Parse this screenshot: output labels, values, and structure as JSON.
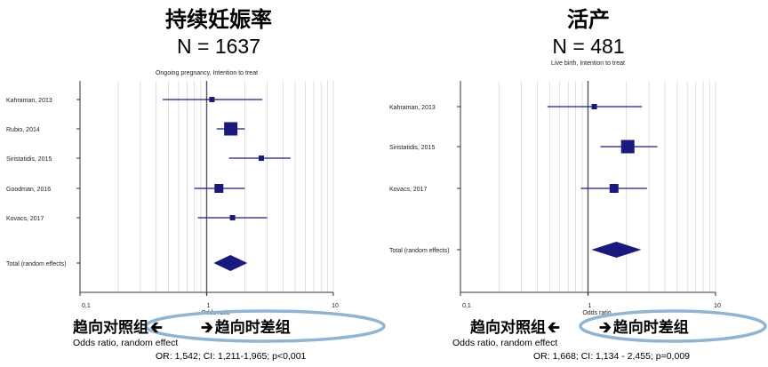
{
  "panels": [
    {
      "title": "持续妊娠率",
      "n_label": "N = 1637",
      "plot_title": "Ongoing pregnancy, Intention to treat",
      "xlabel": "Odds ratio",
      "direction_left": "趋向对照组",
      "direction_right": "趋向时差组",
      "footer_line1": "Odds ratio, random effect",
      "footer_line2": "OR: 1,542; CI: 1,211-1,965; p<0,001"
    },
    {
      "title": "活产",
      "n_label": "N = 481",
      "plot_title": "Live birth, Intention to treat",
      "xlabel": "Odds ratio",
      "direction_left": "趋向对照组",
      "direction_right": "趋向时差组",
      "footer_line1": "Odds ratio, random effect",
      "footer_line2": "OR: 1,668; CI: 1,134 - 2,455; p=0,009"
    }
  ],
  "colors": {
    "marker": "#1a1a7e",
    "highlight_ellipse": "#8fb4d4",
    "grid": "#d8d8d8",
    "reference_line": "#555555"
  },
  "chart_data": [
    {
      "type": "forest",
      "title": "Ongoing pregnancy, Intention to treat",
      "xlabel": "Odds ratio",
      "xscale": "log",
      "xlim": [
        0.1,
        10
      ],
      "xticks": [
        "0,1",
        "1",
        "10"
      ],
      "reference": 1,
      "grid": true,
      "studies": [
        {
          "label": "Kahraman, 2013",
          "or": 1.1,
          "lo": 0.45,
          "hi": 2.75,
          "weight": "small"
        },
        {
          "label": "Rubio, 2014",
          "or": 1.55,
          "lo": 1.2,
          "hi": 2.0,
          "weight": "large"
        },
        {
          "label": "Siristatidis, 2015",
          "or": 2.7,
          "lo": 1.5,
          "hi": 4.6,
          "weight": "small"
        },
        {
          "label": "Goodman, 2016",
          "or": 1.25,
          "lo": 0.8,
          "hi": 2.0,
          "weight": "medium"
        },
        {
          "label": "Kovacs, 2017",
          "or": 1.6,
          "lo": 0.85,
          "hi": 3.0,
          "weight": "small"
        }
      ],
      "total": {
        "label": "Total (random effects)",
        "or": 1.542,
        "lo": 1.211,
        "hi": 1.965
      }
    },
    {
      "type": "forest",
      "title": "Live birth, Intention to treat",
      "xlabel": "Odds ratio",
      "xscale": "log",
      "xlim": [
        0.1,
        10
      ],
      "xticks": [
        "0,1",
        "1",
        "10"
      ],
      "reference": 1,
      "grid": true,
      "studies": [
        {
          "label": "Kahraman, 2013",
          "or": 1.12,
          "lo": 0.48,
          "hi": 2.65,
          "weight": "small"
        },
        {
          "label": "Siristatidis, 2015",
          "or": 2.05,
          "lo": 1.25,
          "hi": 3.5,
          "weight": "large"
        },
        {
          "label": "Kovacs, 2017",
          "or": 1.6,
          "lo": 0.88,
          "hi": 2.9,
          "weight": "medium"
        }
      ],
      "total": {
        "label": "Total (random effects)",
        "or": 1.668,
        "lo": 1.134,
        "hi": 2.455
      }
    }
  ]
}
